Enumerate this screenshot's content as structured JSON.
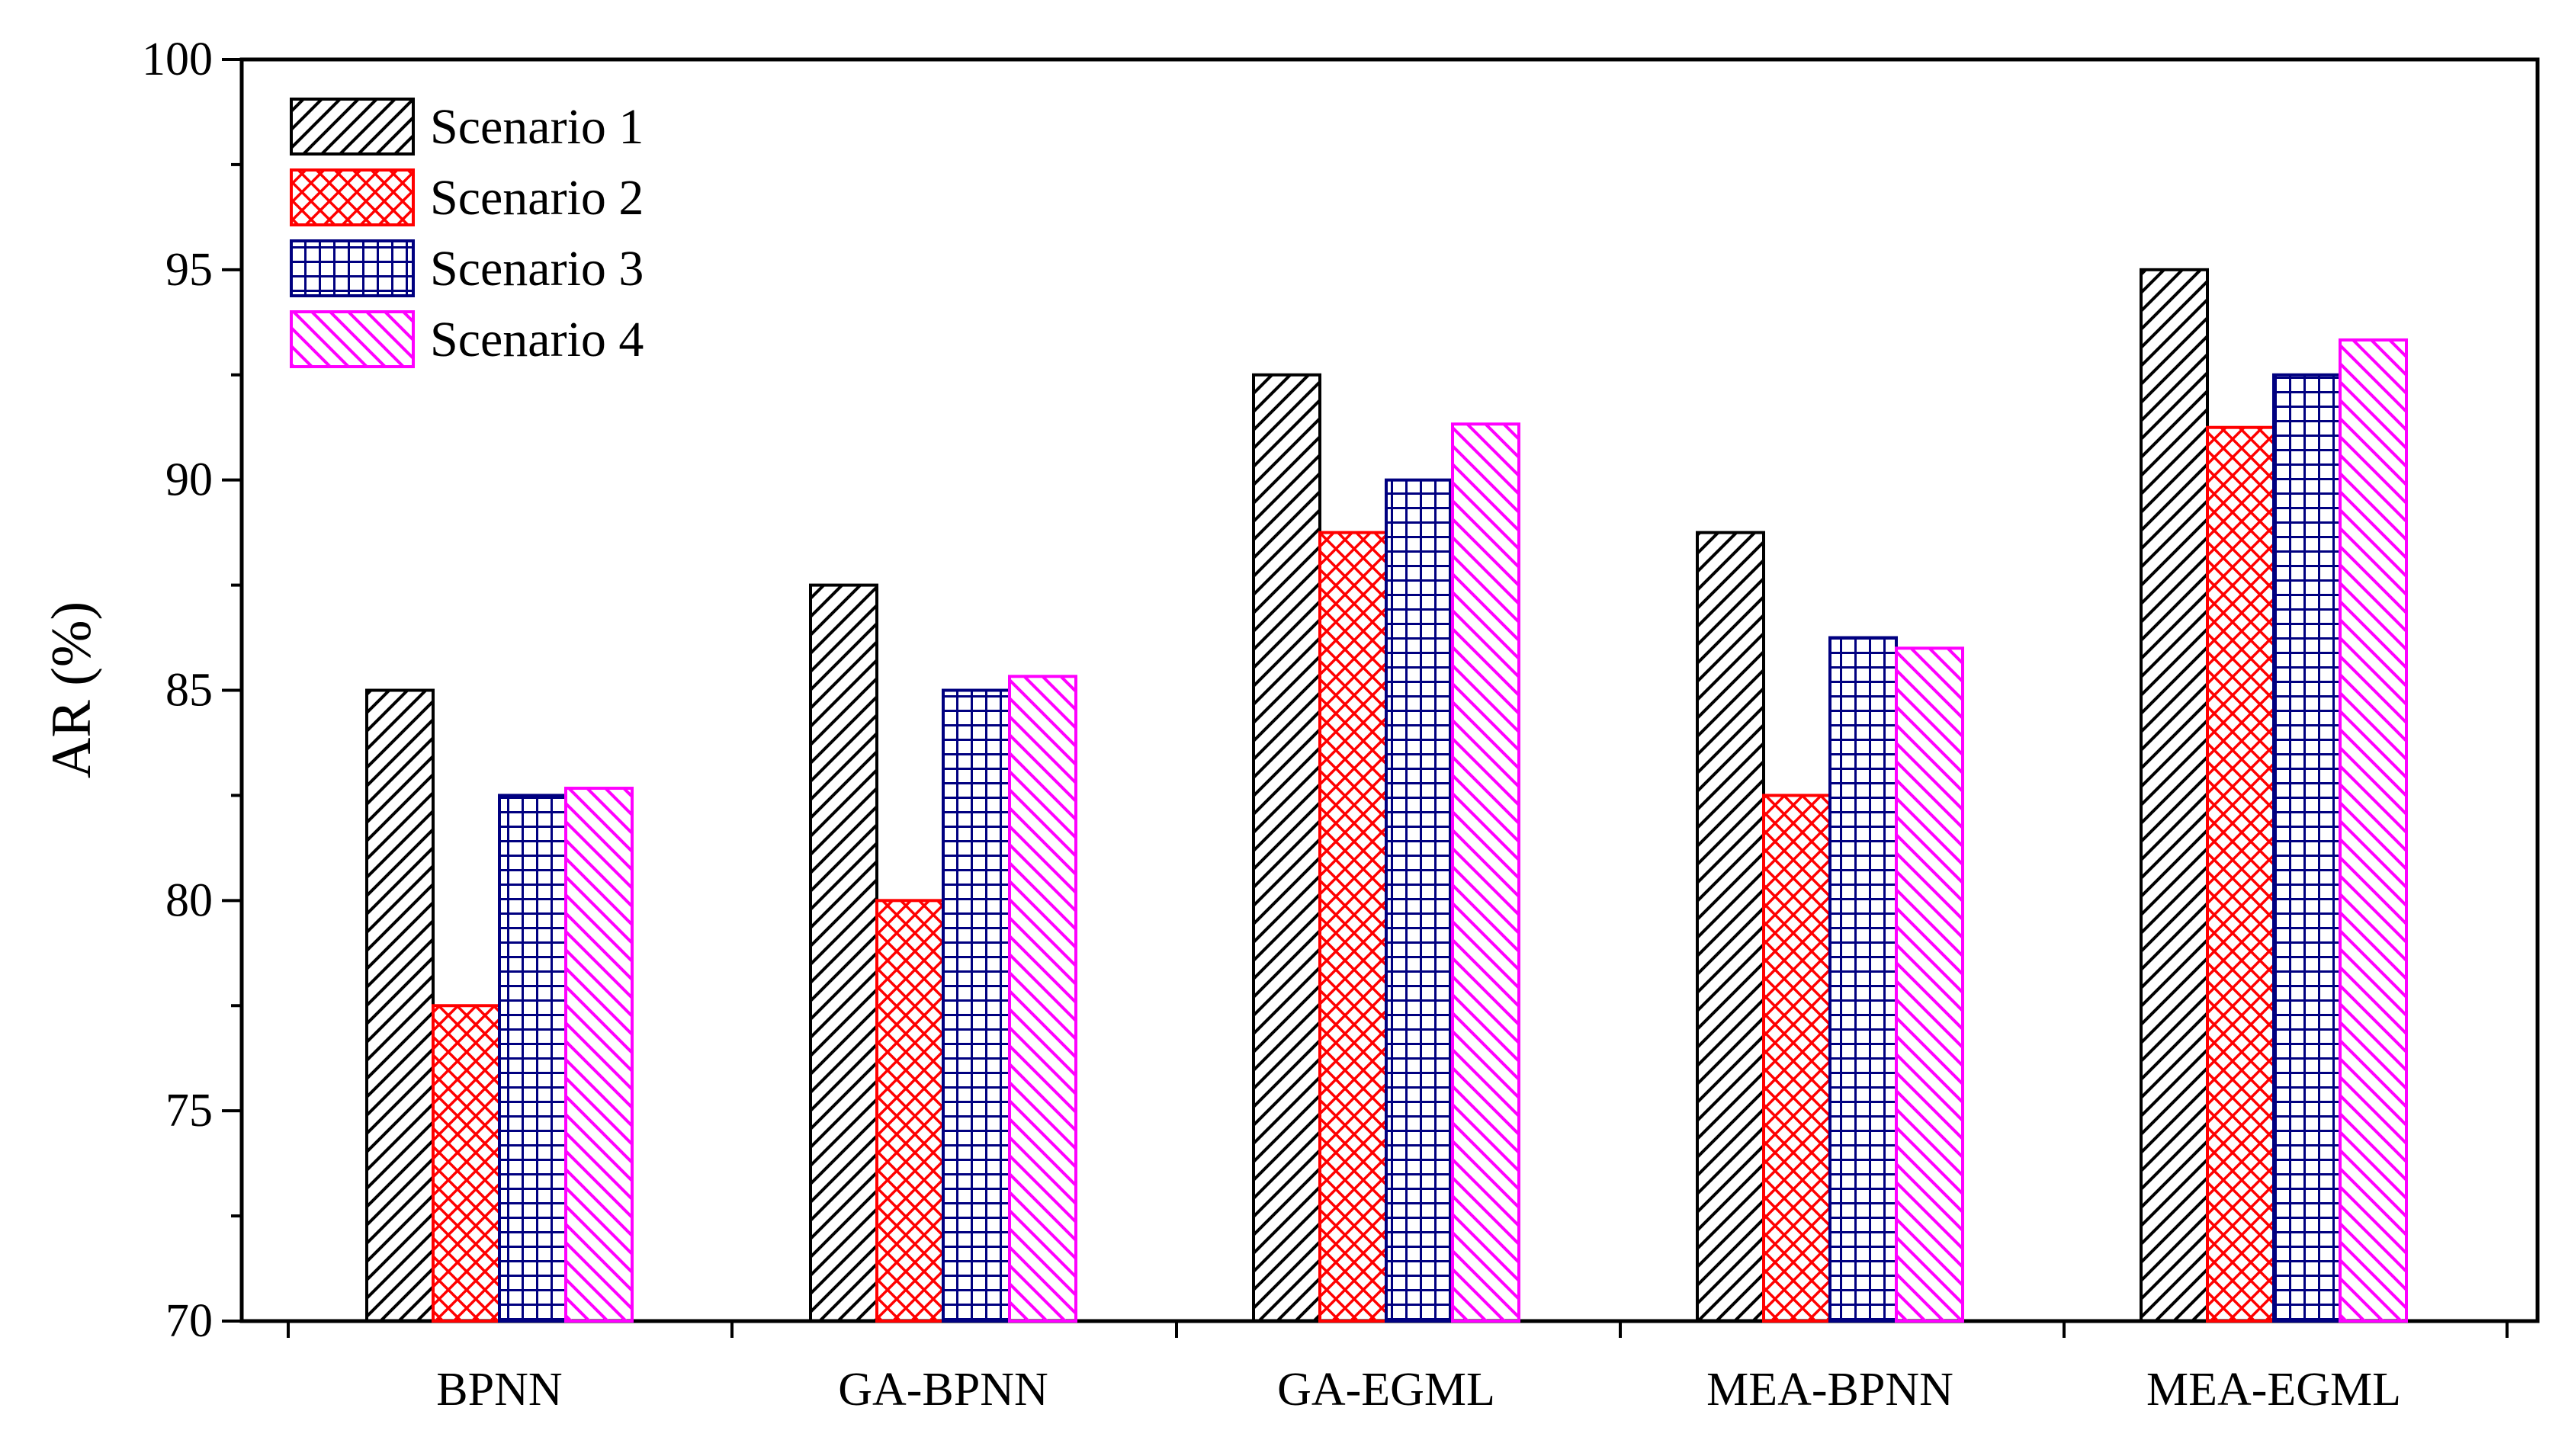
{
  "chart_data": {
    "type": "bar",
    "title": "",
    "xlabel": "",
    "ylabel": "AR (%)",
    "ylim": [
      70,
      100
    ],
    "yticks": [
      "70",
      "75",
      "80",
      "85",
      "90",
      "95",
      "100"
    ],
    "categories": [
      "BPNN",
      "GA-BPNN",
      "GA-EGML",
      "MEA-BPNN",
      "MEA-EGML"
    ],
    "series": [
      {
        "name": "Scenario 1",
        "values": [
          85.0,
          87.5,
          92.5,
          88.75,
          95.0
        ],
        "color": "#000000",
        "pattern": "diagonal-right"
      },
      {
        "name": "Scenario 2",
        "values": [
          77.5,
          80.0,
          88.75,
          82.5,
          91.25
        ],
        "color": "#ff0000",
        "pattern": "crosshatch"
      },
      {
        "name": "Scenario 3",
        "values": [
          82.5,
          85.0,
          90.0,
          86.25,
          92.5
        ],
        "color": "#000080",
        "pattern": "grid"
      },
      {
        "name": "Scenario 4",
        "values": [
          82.67,
          85.33,
          91.33,
          86.0,
          93.33
        ],
        "color": "#ff00ff",
        "pattern": "diagonal-left"
      }
    ],
    "legend_position": "top-left",
    "grid": false
  }
}
